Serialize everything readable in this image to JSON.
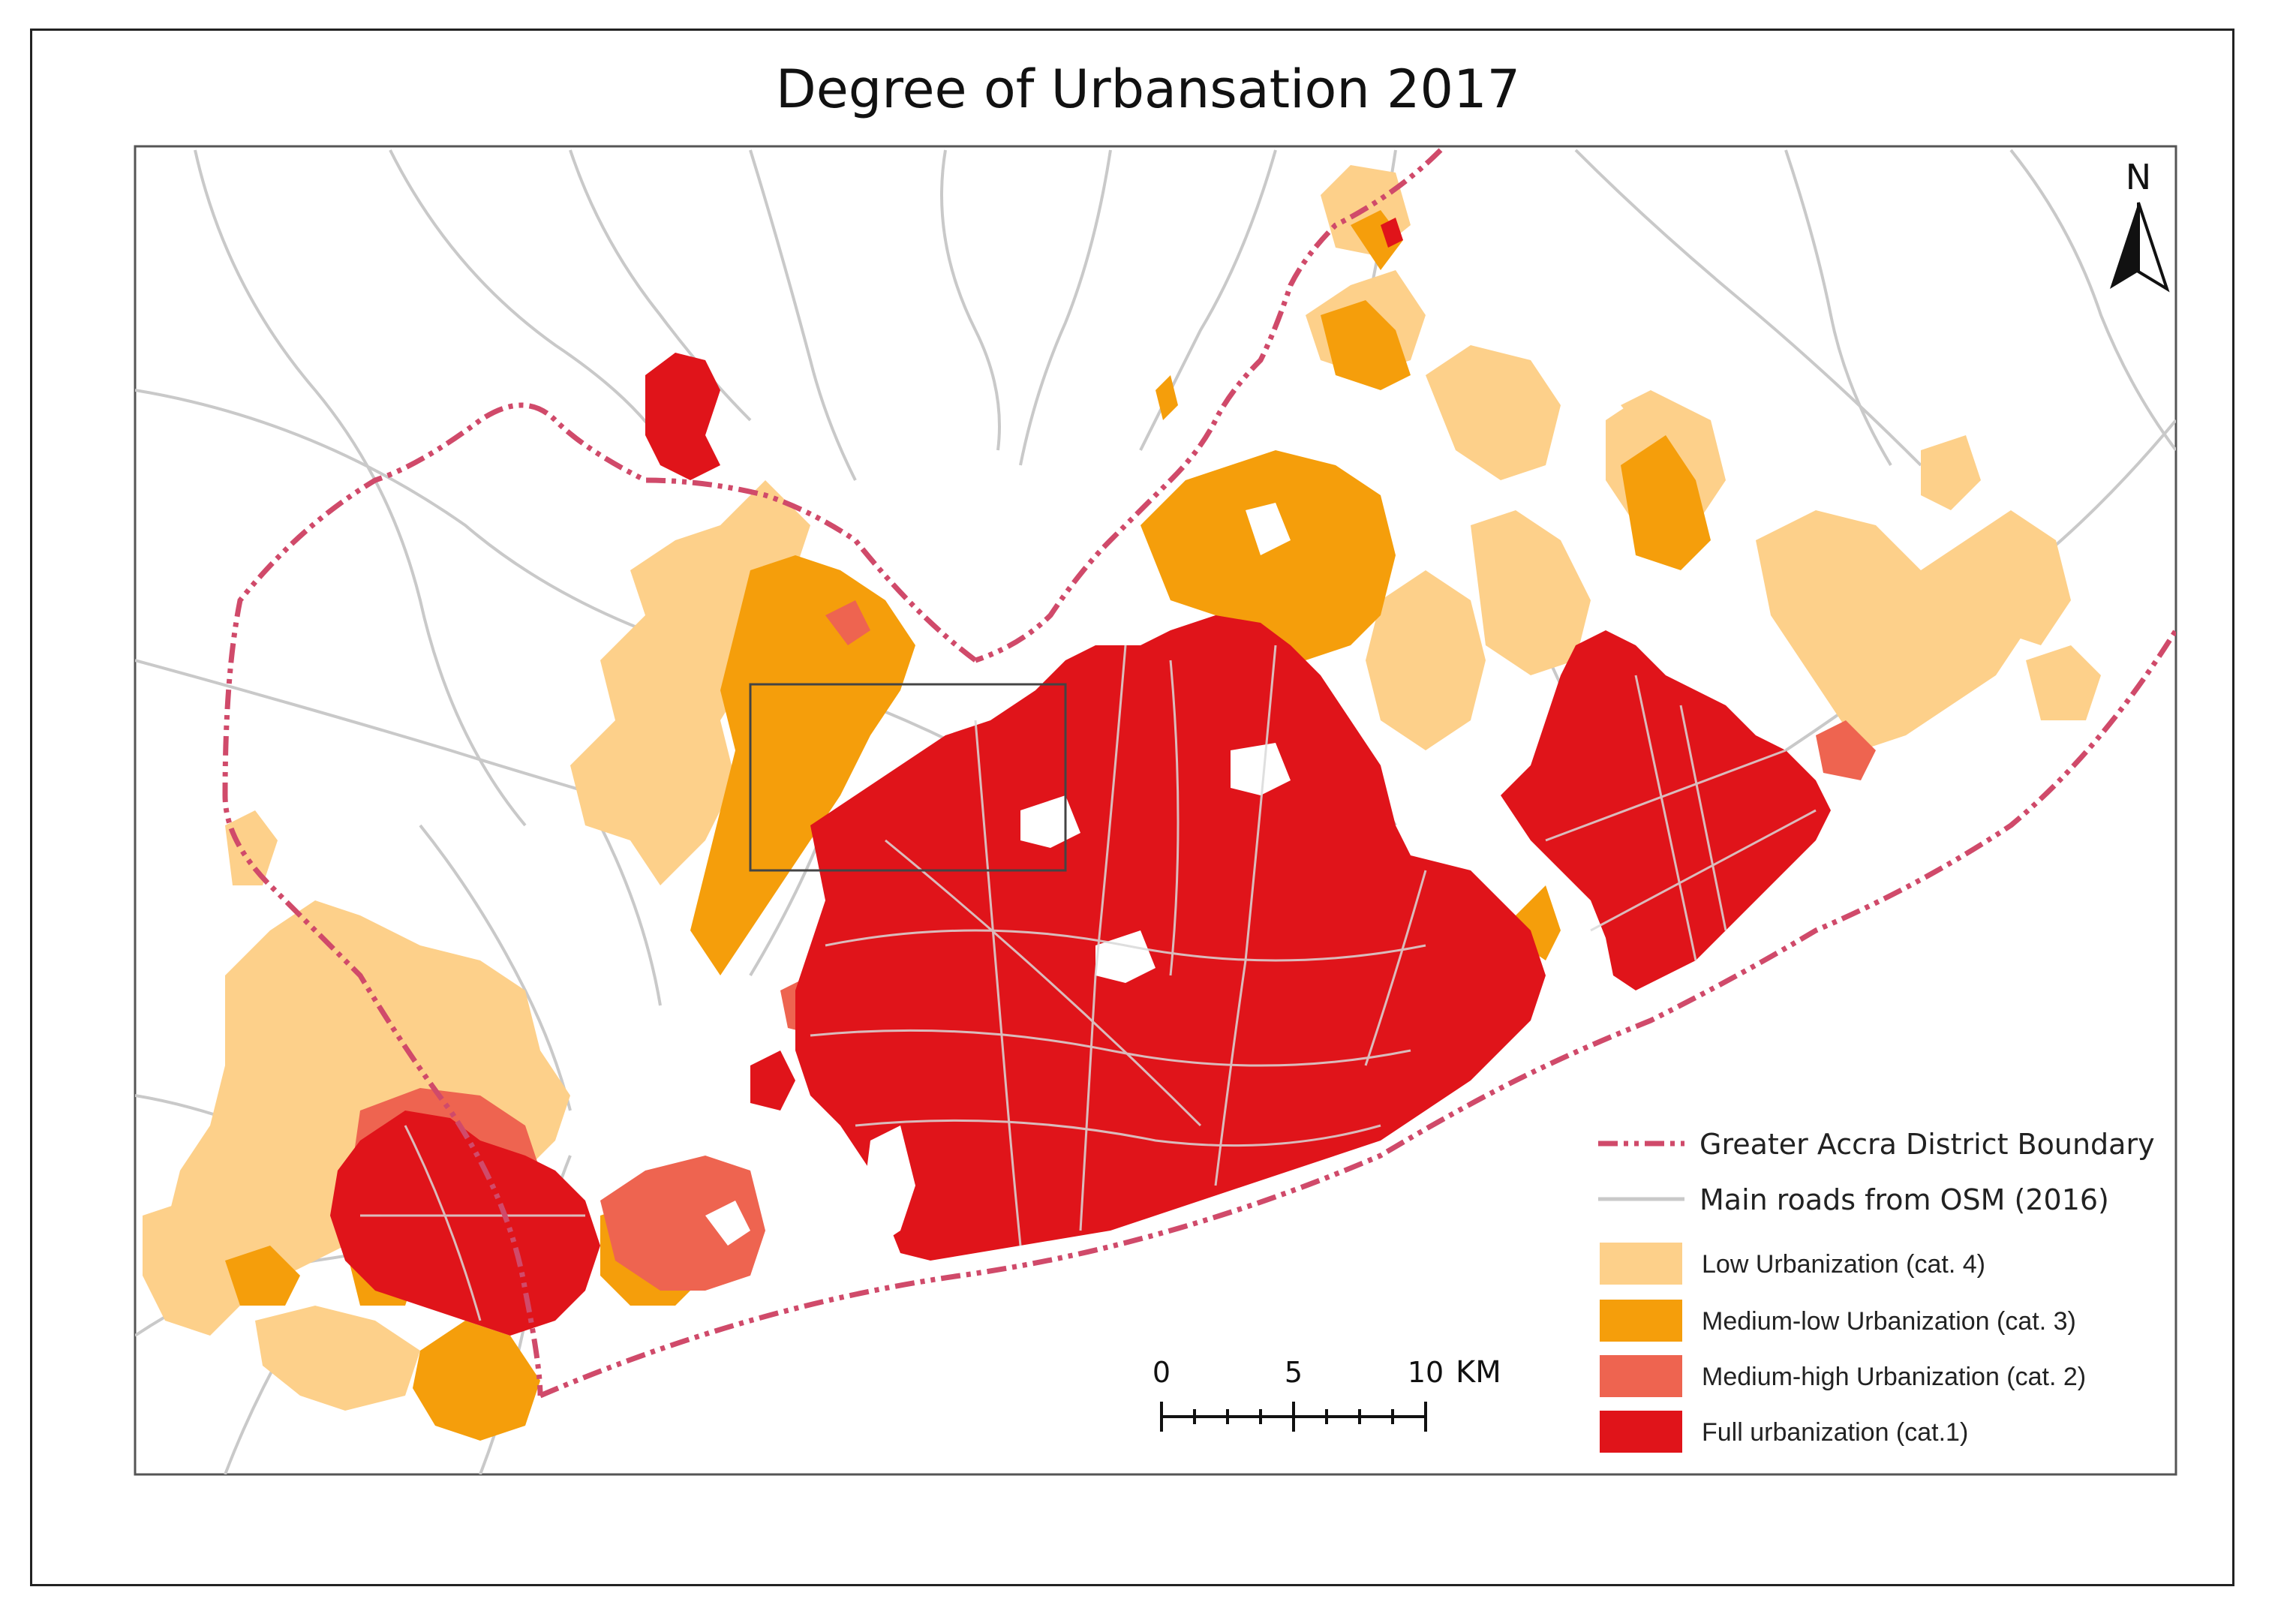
{
  "title": "Degree of Urbansation 2017",
  "north_label": "N",
  "colors": {
    "boundary": "#d04a6a",
    "roads": "#c9c9c9",
    "cat4": "#fdd08a",
    "cat3": "#f59e0b",
    "cat2": "#ee6450",
    "cat1": "#e0141a"
  },
  "legend": {
    "boundary": "Greater Accra District Boundary",
    "roads": "Main roads from OSM (2016)",
    "cat4": "Low Urbanization (cat. 4)",
    "cat3": "Medium-low Urbanization (cat. 3)",
    "cat2": "Medium-high Urbanization (cat. 2)",
    "cat1": "Full urbanization (cat.1)"
  },
  "scale_bar": {
    "labels": [
      "0",
      "5",
      "10"
    ],
    "unit": "KM"
  }
}
